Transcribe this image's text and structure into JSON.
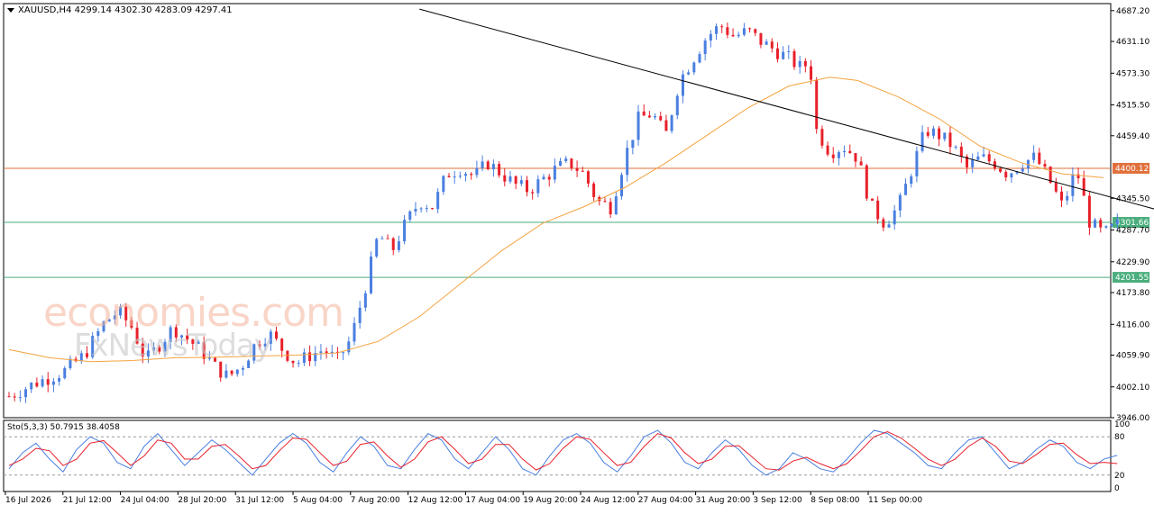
{
  "header": {
    "symbol": "XAUUSD,H4",
    "ohlc": "4299.14 4302.30 4283.09 4297.41",
    "indicator": "Sto(5,3,3) 50.7915 38.4058"
  },
  "watermark": {
    "line1": "economies.com",
    "line2": "FxNewsToday"
  },
  "colors": {
    "bull": "#4a7fe0",
    "bear": "#e8202a",
    "ma": "#f4a340",
    "resistance": "#e0703c",
    "support": "#4aae7d",
    "trendline": "#000000",
    "sto_main": "#4a7fe0",
    "sto_signal": "#e8202a"
  },
  "chart_data": {
    "type": "candlestick",
    "x_labels": [
      "16 Jul 2026",
      "21 Jul 12:00",
      "24 Jul 04:00",
      "28 Jul 20:00",
      "31 Jul 12:00",
      "5 Aug 04:00",
      "7 Aug 20:00",
      "12 Aug 12:00",
      "17 Aug 04:00",
      "19 Aug 20:00",
      "24 Aug 12:00",
      "27 Aug 04:00",
      "31 Aug 20:00",
      "3 Sep 12:00",
      "8 Sep 08:00",
      "11 Sep 00:00"
    ],
    "y_ticks": [
      "4687.20",
      "4631.10",
      "4573.30",
      "4515.50",
      "4459.40",
      "4345.50",
      "4287.70",
      "4229.90",
      "4173.80",
      "4116.00",
      "4059.90",
      "4002.10",
      "3946.00"
    ],
    "ylim": [
      3946.0,
      4700.0
    ],
    "levels": [
      {
        "label": "4400.12",
        "value": 4400.12,
        "color": "#e0703c"
      },
      {
        "label": "4301.66",
        "value": 4301.66,
        "color": "#4aae7d"
      },
      {
        "label": "4201.55",
        "value": 4201.55,
        "color": "#4aae7d"
      }
    ],
    "trendline": {
      "from": [
        0.3,
        4690
      ],
      "to": [
        0.84,
        4324
      ]
    },
    "close_path": [
      [
        0.0,
        3985
      ],
      [
        0.02,
        4010
      ],
      [
        0.04,
        4030
      ],
      [
        0.055,
        4060
      ],
      [
        0.07,
        4120
      ],
      [
        0.08,
        4140
      ],
      [
        0.09,
        4110
      ],
      [
        0.1,
        4050
      ],
      [
        0.11,
        4080
      ],
      [
        0.12,
        4110
      ],
      [
        0.13,
        4090
      ],
      [
        0.14,
        4070
      ],
      [
        0.15,
        4040
      ],
      [
        0.16,
        4020
      ],
      [
        0.17,
        4040
      ],
      [
        0.18,
        4080
      ],
      [
        0.19,
        4100
      ],
      [
        0.2,
        4070
      ],
      [
        0.21,
        4045
      ],
      [
        0.22,
        4060
      ],
      [
        0.23,
        4070
      ],
      [
        0.24,
        4050
      ],
      [
        0.25,
        4090
      ],
      [
        0.26,
        4180
      ],
      [
        0.27,
        4280
      ],
      [
        0.28,
        4250
      ],
      [
        0.29,
        4300
      ],
      [
        0.3,
        4340
      ],
      [
        0.31,
        4330
      ],
      [
        0.32,
        4390
      ],
      [
        0.33,
        4400
      ],
      [
        0.34,
        4385
      ],
      [
        0.35,
        4410
      ],
      [
        0.36,
        4390
      ],
      [
        0.37,
        4370
      ],
      [
        0.38,
        4360
      ],
      [
        0.39,
        4380
      ],
      [
        0.4,
        4400
      ],
      [
        0.41,
        4410
      ],
      [
        0.42,
        4390
      ],
      [
        0.43,
        4340
      ],
      [
        0.44,
        4330
      ],
      [
        0.45,
        4420
      ],
      [
        0.46,
        4490
      ],
      [
        0.47,
        4500
      ],
      [
        0.48,
        4460
      ],
      [
        0.49,
        4560
      ],
      [
        0.5,
        4600
      ],
      [
        0.51,
        4640
      ],
      [
        0.52,
        4660
      ],
      [
        0.53,
        4640
      ],
      [
        0.54,
        4650
      ],
      [
        0.55,
        4630
      ],
      [
        0.56,
        4615
      ],
      [
        0.57,
        4600
      ],
      [
        0.58,
        4580
      ],
      [
        0.585,
        4600
      ],
      [
        0.59,
        4470
      ],
      [
        0.6,
        4430
      ],
      [
        0.61,
        4440
      ],
      [
        0.62,
        4420
      ],
      [
        0.63,
        4330
      ],
      [
        0.64,
        4300
      ],
      [
        0.65,
        4330
      ],
      [
        0.66,
        4400
      ],
      [
        0.67,
        4470
      ],
      [
        0.68,
        4460
      ],
      [
        0.69,
        4440
      ],
      [
        0.7,
        4400
      ],
      [
        0.71,
        4420
      ],
      [
        0.72,
        4410
      ],
      [
        0.73,
        4390
      ],
      [
        0.74,
        4410
      ],
      [
        0.75,
        4420
      ],
      [
        0.76,
        4380
      ],
      [
        0.77,
        4330
      ],
      [
        0.78,
        4400
      ],
      [
        0.785,
        4350
      ],
      [
        0.79,
        4300
      ],
      [
        0.8,
        4280
      ],
      [
        0.81,
        4297
      ]
    ],
    "ma_path": [
      [
        0.0,
        4070
      ],
      [
        0.03,
        4055
      ],
      [
        0.06,
        4048
      ],
      [
        0.09,
        4050
      ],
      [
        0.12,
        4055
      ],
      [
        0.15,
        4056
      ],
      [
        0.18,
        4058
      ],
      [
        0.21,
        4060
      ],
      [
        0.24,
        4064
      ],
      [
        0.27,
        4085
      ],
      [
        0.3,
        4130
      ],
      [
        0.33,
        4190
      ],
      [
        0.36,
        4250
      ],
      [
        0.39,
        4300
      ],
      [
        0.42,
        4330
      ],
      [
        0.45,
        4365
      ],
      [
        0.48,
        4410
      ],
      [
        0.51,
        4460
      ],
      [
        0.54,
        4510
      ],
      [
        0.57,
        4550
      ],
      [
        0.6,
        4566
      ],
      [
        0.62,
        4560
      ],
      [
        0.65,
        4530
      ],
      [
        0.68,
        4490
      ],
      [
        0.71,
        4440
      ],
      [
        0.74,
        4410
      ],
      [
        0.77,
        4390
      ],
      [
        0.8,
        4383
      ]
    ],
    "stochastic": {
      "ticks": [
        "100",
        "80",
        "20",
        "0"
      ],
      "levels": [
        80,
        20
      ],
      "main": [
        30,
        55,
        70,
        45,
        25,
        60,
        80,
        70,
        40,
        30,
        65,
        85,
        60,
        35,
        55,
        75,
        60,
        40,
        20,
        45,
        70,
        85,
        70,
        40,
        25,
        55,
        80,
        65,
        35,
        30,
        60,
        85,
        75,
        45,
        30,
        55,
        80,
        60,
        30,
        20,
        50,
        75,
        85,
        70,
        40,
        25,
        50,
        80,
        90,
        70,
        40,
        30,
        55,
        75,
        60,
        35,
        20,
        30,
        55,
        45,
        30,
        25,
        45,
        70,
        90,
        85,
        70,
        55,
        35,
        30,
        55,
        75,
        80,
        55,
        30,
        40,
        60,
        75,
        65,
        40,
        30,
        45,
        51
      ],
      "signal": [
        35,
        45,
        62,
        58,
        35,
        45,
        70,
        74,
        55,
        35,
        50,
        75,
        70,
        45,
        45,
        65,
        68,
        50,
        30,
        35,
        58,
        78,
        76,
        55,
        35,
        42,
        68,
        72,
        50,
        32,
        45,
        72,
        80,
        60,
        38,
        45,
        68,
        68,
        45,
        28,
        38,
        62,
        80,
        76,
        55,
        35,
        40,
        65,
        85,
        78,
        55,
        38,
        45,
        65,
        66,
        48,
        30,
        28,
        42,
        48,
        38,
        30,
        38,
        58,
        80,
        88,
        78,
        62,
        45,
        35,
        45,
        65,
        78,
        65,
        42,
        38,
        52,
        68,
        70,
        52,
        38,
        40,
        38
      ]
    }
  }
}
